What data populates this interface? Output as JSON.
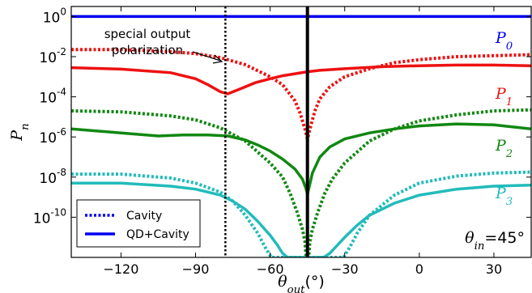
{
  "chart_data": {
    "type": "line",
    "xlabel": "θout(°)",
    "xlabel_main": "θ",
    "xlabel_sub": "out",
    "xlabel_unit": "(°)",
    "ylabel": "Pn",
    "ylabel_main": "P",
    "ylabel_sub": "n",
    "xlim": [
      -140,
      45
    ],
    "ylim_exp": [
      -12,
      0.5
    ],
    "y_scale": "log",
    "x_ticks": [
      -120,
      -90,
      -60,
      -30,
      0,
      30
    ],
    "x_tick_labels": [
      "−120",
      "−90",
      "−60",
      "−30",
      "0",
      "30"
    ],
    "y_ticks_exp": [
      0,
      -2,
      -4,
      -6,
      -8,
      -10
    ],
    "y_tick_labels": [
      {
        "base": "10",
        "exp": "0"
      },
      {
        "base": "10",
        "exp": "-2"
      },
      {
        "base": "10",
        "exp": "-4"
      },
      {
        "base": "10",
        "exp": "-6"
      },
      {
        "base": "10",
        "exp": "-8"
      },
      {
        "base": "10",
        "exp": "-10"
      }
    ],
    "annotation": {
      "line1": "special output",
      "line2": "polarization",
      "x": -78
    },
    "condition": {
      "main": "θ",
      "sub": "in",
      "value": "=45°"
    },
    "vertical_line_x": -45,
    "legend": {
      "position": "bottom-left",
      "entries": [
        {
          "label": "Cavity",
          "style": "dotted",
          "color": "#0000ee"
        },
        {
          "label": "QD+Cavity",
          "style": "solid",
          "color": "#0000ee"
        }
      ]
    },
    "series": [
      {
        "name": "P0",
        "label_main": "P",
        "label_sub": "0",
        "color": "#0000ee",
        "solid": {
          "x": [
            -140,
            45
          ],
          "log10_y": [
            0,
            0
          ]
        }
      },
      {
        "name": "P1",
        "label_main": "P",
        "label_sub": "1",
        "color": "#ee1111",
        "solid": {
          "x": [
            -140,
            -120,
            -100,
            -90,
            -85,
            -80,
            -77,
            -72,
            -66,
            -60,
            -55,
            -50,
            -45,
            -40,
            -30,
            -15,
            0,
            15,
            30,
            45
          ],
          "log10_y": [
            -2.55,
            -2.62,
            -2.8,
            -3.1,
            -3.4,
            -3.75,
            -3.85,
            -3.6,
            -3.3,
            -3.1,
            -2.95,
            -2.85,
            -2.75,
            -2.68,
            -2.6,
            -2.5,
            -2.45,
            -2.42,
            -2.42,
            -2.45
          ]
        },
        "dotted": {
          "x": [
            -140,
            -120,
            -100,
            -90,
            -80,
            -70,
            -60,
            -55,
            -50,
            -48,
            -46,
            -45,
            -44,
            -42,
            -40,
            -36,
            -30,
            -20,
            -10,
            0,
            15,
            30,
            45
          ],
          "log10_y": [
            -1.65,
            -1.65,
            -1.75,
            -1.85,
            -2.05,
            -2.4,
            -3.0,
            -3.4,
            -4.2,
            -4.8,
            -5.6,
            -6.1,
            -5.6,
            -4.7,
            -4.1,
            -3.5,
            -3.0,
            -2.6,
            -2.3,
            -2.15,
            -2.0,
            -1.95,
            -1.9
          ]
        }
      },
      {
        "name": "P2",
        "label_main": "P",
        "label_sub": "2",
        "color": "#118811",
        "solid": {
          "x": [
            -140,
            -120,
            -105,
            -95,
            -85,
            -77,
            -70,
            -65,
            -60,
            -55,
            -50,
            -47,
            -45.5,
            -45,
            -44.5,
            -43,
            -40,
            -36,
            -30,
            -20,
            -10,
            0,
            15,
            30,
            45
          ],
          "log10_y": [
            -5.6,
            -5.8,
            -5.95,
            -5.9,
            -5.9,
            -5.95,
            -6.15,
            -6.4,
            -6.7,
            -7.1,
            -7.6,
            -8.1,
            -8.6,
            -8.85,
            -8.6,
            -7.8,
            -7.0,
            -6.5,
            -6.1,
            -5.8,
            -5.6,
            -5.45,
            -5.35,
            -5.4,
            -5.6
          ]
        },
        "dotted": {
          "x": [
            -140,
            -120,
            -100,
            -90,
            -80,
            -70,
            -60,
            -55,
            -52,
            -49,
            -47,
            -46,
            -45.5,
            -44.5,
            -44,
            -43,
            -41,
            -38,
            -35,
            -30,
            -20,
            -10,
            0,
            15,
            30,
            45
          ],
          "log10_y": [
            -4.7,
            -4.75,
            -4.95,
            -5.15,
            -5.55,
            -6.2,
            -7.3,
            -8.0,
            -8.8,
            -9.8,
            -10.6,
            -11.2,
            -12,
            -12,
            -11.2,
            -10.6,
            -9.8,
            -8.8,
            -8.1,
            -7.3,
            -6.2,
            -5.6,
            -5.2,
            -4.9,
            -4.7,
            -4.65
          ]
        }
      },
      {
        "name": "P3",
        "label_main": "P",
        "label_sub": "3",
        "color": "#22bbbb",
        "solid": {
          "x": [
            -140,
            -120,
            -100,
            -90,
            -80,
            -75,
            -70,
            -65,
            -60,
            -57,
            -55,
            -53,
            -51.5,
            -38.5,
            -36,
            -33,
            -30,
            -25,
            -20,
            -10,
            0,
            15,
            30,
            45
          ],
          "log10_y": [
            -8.3,
            -8.3,
            -8.45,
            -8.6,
            -8.9,
            -9.2,
            -9.6,
            -10.2,
            -10.9,
            -11.4,
            -11.8,
            -12,
            -12,
            -12,
            -11.8,
            -11.4,
            -11.0,
            -10.4,
            -9.9,
            -9.3,
            -8.9,
            -8.6,
            -8.45,
            -8.4
          ]
        },
        "dotted": {
          "x": [
            -140,
            -120,
            -100,
            -90,
            -80,
            -75,
            -70,
            -65,
            -62,
            -60,
            -59.5,
            -30.5,
            -30,
            -28,
            -25,
            -20,
            -10,
            0,
            15,
            30,
            45
          ],
          "log10_y": [
            -7.85,
            -7.85,
            -8.05,
            -8.3,
            -8.75,
            -9.2,
            -9.9,
            -10.8,
            -11.5,
            -11.9,
            -12,
            -12,
            -11.9,
            -11.5,
            -10.8,
            -9.9,
            -8.9,
            -8.3,
            -7.95,
            -7.8,
            -7.75
          ]
        }
      }
    ]
  }
}
